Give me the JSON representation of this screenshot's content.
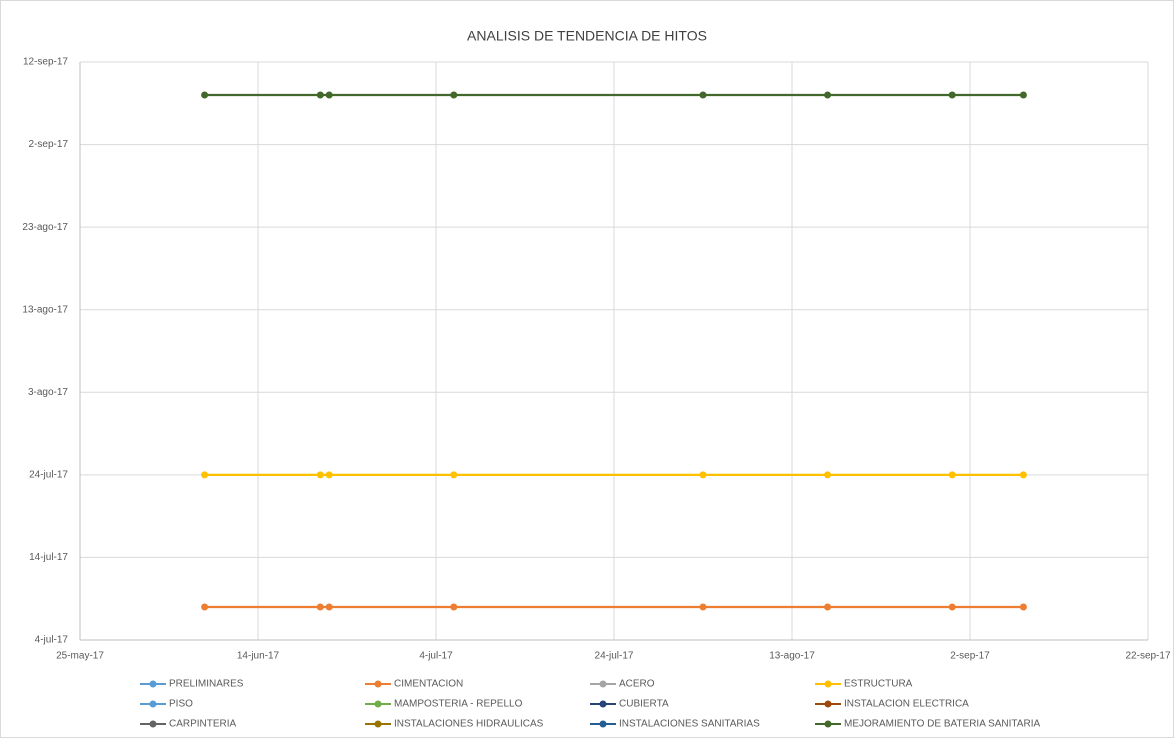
{
  "chart_data": {
    "type": "line",
    "title": "ANALISIS DE TENDENCIA DE HITOS",
    "x": [
      42894,
      42907,
      42908,
      42922,
      42950,
      42964,
      42978,
      42986
    ],
    "xlim": [
      42880,
      43000
    ],
    "xticks": [
      {
        "value": 42880,
        "label": "25-may-17"
      },
      {
        "value": 42900,
        "label": "14-jun-17"
      },
      {
        "value": 42920,
        "label": "4-jul-17"
      },
      {
        "value": 42940,
        "label": "24-jul-17"
      },
      {
        "value": 42960,
        "label": "13-ago-17"
      },
      {
        "value": 42980,
        "label": "2-sep-17"
      },
      {
        "value": 43000,
        "label": "22-sep-17"
      }
    ],
    "ylim": [
      42920,
      42990
    ],
    "yticks": [
      {
        "value": 42920,
        "label": "4-jul-17"
      },
      {
        "value": 42930,
        "label": "14-jul-17"
      },
      {
        "value": 42940,
        "label": "24-jul-17"
      },
      {
        "value": 42950,
        "label": "3-ago-17"
      },
      {
        "value": 42960,
        "label": "13-ago-17"
      },
      {
        "value": 42970,
        "label": "23-ago-17"
      },
      {
        "value": 42980,
        "label": "2-sep-17"
      },
      {
        "value": 42990,
        "label": "12-sep-17"
      }
    ],
    "grid": true,
    "legend": "bottom",
    "series": [
      {
        "name": "PRELIMINARES",
        "color": "#5b9bd5",
        "values": [
          null,
          null,
          null,
          null,
          null,
          null,
          null,
          null
        ]
      },
      {
        "name": "CIMENTACION",
        "color": "#ed7d31",
        "values": [
          42924,
          42924,
          42924,
          42924,
          42924,
          42924,
          42924,
          42924
        ]
      },
      {
        "name": "ACERO",
        "color": "#a5a5a5",
        "values": [
          null,
          null,
          null,
          null,
          null,
          null,
          null,
          null
        ]
      },
      {
        "name": "ESTRUCTURA",
        "color": "#ffc000",
        "values": [
          42940,
          42940,
          42940,
          42940,
          42940,
          42940,
          42940,
          42940
        ]
      },
      {
        "name": "PISO",
        "color": "#5b9bd5",
        "values": [
          null,
          null,
          null,
          null,
          null,
          null,
          null,
          null
        ]
      },
      {
        "name": "MAMPOSTERIA - REPELLO",
        "color": "#70ad47",
        "values": [
          null,
          null,
          null,
          null,
          null,
          null,
          null,
          null
        ]
      },
      {
        "name": "CUBIERTA",
        "color": "#264478",
        "values": [
          null,
          null,
          null,
          null,
          null,
          null,
          null,
          null
        ]
      },
      {
        "name": "INSTALACION ELECTRICA",
        "color": "#9e480e",
        "values": [
          null,
          null,
          null,
          null,
          null,
          null,
          null,
          null
        ]
      },
      {
        "name": "CARPINTERIA",
        "color": "#636363",
        "values": [
          null,
          null,
          null,
          null,
          null,
          null,
          null,
          null
        ]
      },
      {
        "name": "INSTALACIONES HIDRAULICAS",
        "color": "#997300",
        "values": [
          null,
          null,
          null,
          null,
          null,
          null,
          null,
          null
        ]
      },
      {
        "name": "INSTALACIONES SANITARIAS",
        "color": "#255e91",
        "values": [
          null,
          null,
          null,
          null,
          null,
          null,
          null,
          null
        ]
      },
      {
        "name": "MEJORAMIENTO DE BATERIA SANITARIA",
        "color": "#43682b",
        "values": [
          42986,
          42986,
          42986,
          42986,
          42986,
          42986,
          42986,
          42986
        ]
      }
    ]
  }
}
